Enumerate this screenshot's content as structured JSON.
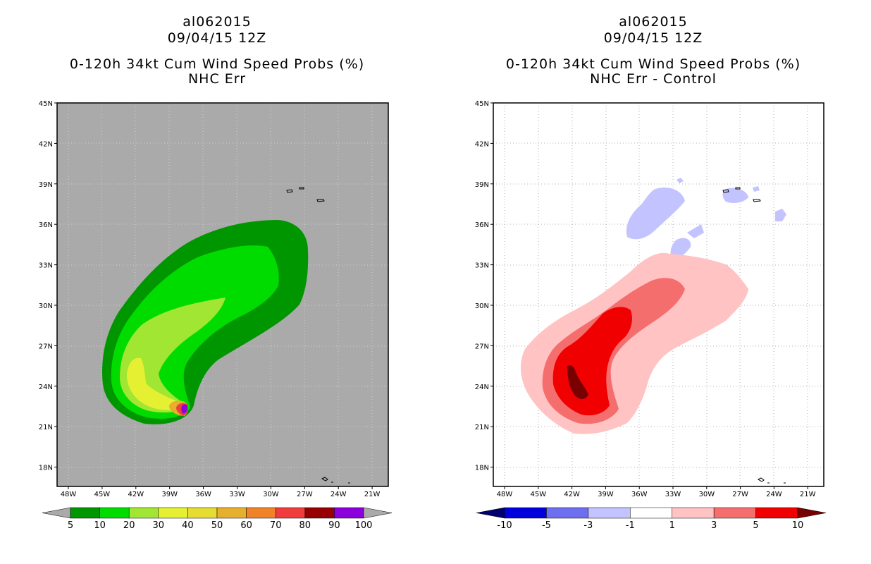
{
  "chart_data": [
    {
      "type": "contour-map",
      "storm_id": "al062015",
      "datetime": "09/04/15 12Z",
      "title": "0-120h 34kt Cum Wind Speed Probs (%)",
      "subtitle": "NHC Err",
      "lat_ticks": [
        "45N",
        "42N",
        "39N",
        "36N",
        "33N",
        "30N",
        "27N",
        "24N",
        "21N",
        "18N"
      ],
      "lon_ticks": [
        "48W",
        "45W",
        "42W",
        "39W",
        "36W",
        "33W",
        "30W",
        "27W",
        "24W",
        "21W"
      ],
      "colorbar": {
        "labels": [
          "5",
          "10",
          "20",
          "30",
          "40",
          "50",
          "60",
          "70",
          "80",
          "90",
          "100"
        ],
        "colors": [
          "#009600",
          "#00dc00",
          "#a0e632",
          "#e6f032",
          "#e6dc32",
          "#e6af2d",
          "#f08228",
          "#f03c3c",
          "#960000",
          "#8c00dc"
        ],
        "ends": [
          "#aaaaaa",
          "#aaaaaa"
        ]
      }
    },
    {
      "type": "contour-map",
      "storm_id": "al062015",
      "datetime": "09/04/15 12Z",
      "title": "0-120h 34kt Cum Wind Speed Probs (%)",
      "subtitle": "NHC Err - Control",
      "lat_ticks": [
        "45N",
        "42N",
        "39N",
        "36N",
        "33N",
        "30N",
        "27N",
        "24N",
        "21N",
        "18N"
      ],
      "lon_ticks": [
        "48W",
        "45W",
        "42W",
        "39W",
        "36W",
        "33W",
        "30W",
        "27W",
        "24W",
        "21W"
      ],
      "colorbar": {
        "labels": [
          "-10",
          "-5",
          "-3",
          "-1",
          "1",
          "3",
          "5",
          "10"
        ],
        "colors": [
          "#0000dc",
          "#6e6ef0",
          "#c3c3ff",
          "#ffffff",
          "#ffc3c3",
          "#f56e6e",
          "#f00000"
        ],
        "ends": [
          "#00006e",
          "#780000"
        ]
      }
    }
  ]
}
